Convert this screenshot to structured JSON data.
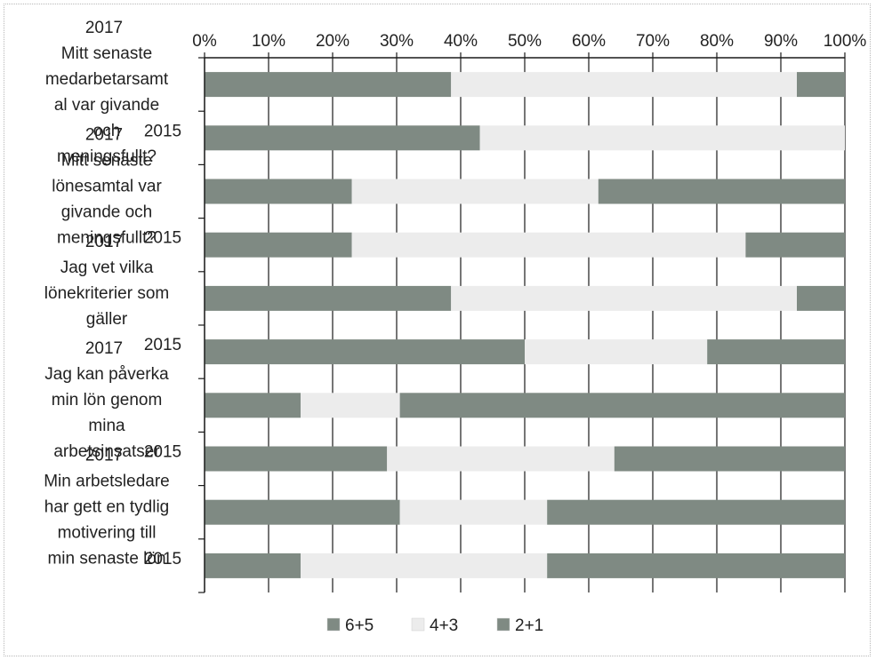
{
  "chart_data": {
    "type": "bar",
    "orientation": "horizontal",
    "stacked": "percent",
    "categories": [
      "2017\nMitt senaste\nmedarbetarsamt\nal var givande\noch\nmeningsfullt?",
      "2015",
      "2017\nMitt senaste\nlönesamtal var\ngivande och\nmeningsfullt?",
      "2015",
      "2017\nJag vet vilka\nlönekriterier som\ngäller",
      "2015",
      "2017\nJag kan påverka\nmin lön genom\nmina\narbetsinsatser",
      "2015",
      "2017\nMin arbetsledare\nhar gett en tydlig\nmotivering till\nmin senaste lön",
      "2015"
    ],
    "series": [
      {
        "name": "6+5",
        "values": [
          38.5,
          43,
          23,
          23,
          38.5,
          50,
          15,
          28.5,
          30.5,
          15
        ]
      },
      {
        "name": "4+3",
        "values": [
          54,
          57,
          38.5,
          61.5,
          54,
          28.5,
          15.5,
          35.5,
          23,
          38.5
        ]
      },
      {
        "name": "2+1",
        "values": [
          7.5,
          0,
          38.5,
          15.5,
          7.5,
          21.5,
          69.5,
          36,
          46.5,
          46.5
        ]
      }
    ],
    "xlim": [
      0,
      100
    ],
    "xticks": [
      "0%",
      "10%",
      "20%",
      "30%",
      "40%",
      "50%",
      "60%",
      "70%",
      "80%",
      "90%",
      "100%"
    ],
    "x_axis_position": "top",
    "grid": true,
    "legend": "bottom"
  },
  "colors": {
    "6+5": "#7f8a83",
    "4+3": "#ececec",
    "2+1": "#7f8a83"
  }
}
